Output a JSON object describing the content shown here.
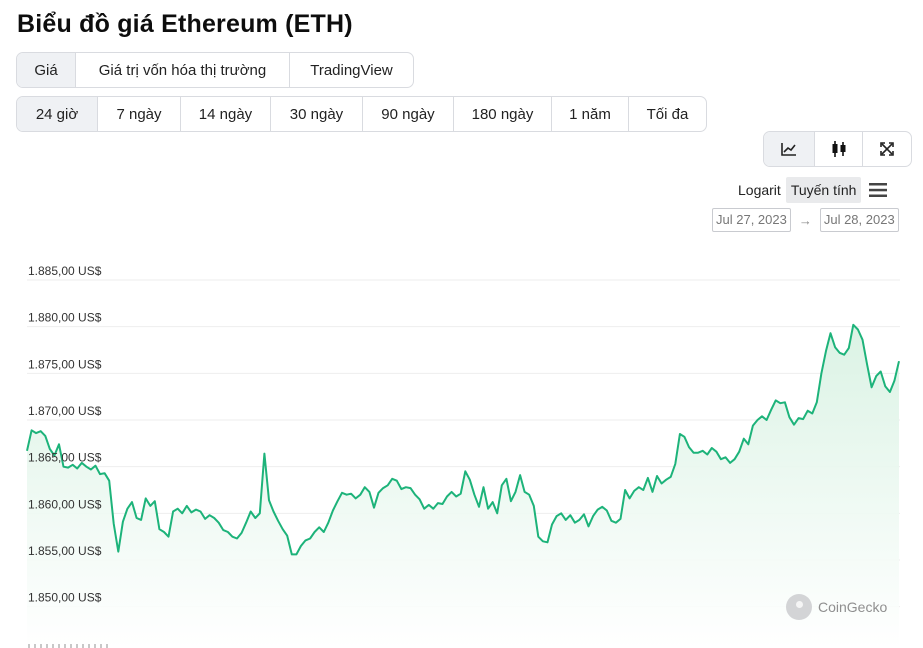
{
  "title": "Biểu đồ giá Ethereum (ETH)",
  "view_tabs": [
    {
      "label": "Giá",
      "active": true
    },
    {
      "label": "Giá trị vốn hóa thị trường",
      "active": false
    },
    {
      "label": "TradingView",
      "active": false
    }
  ],
  "range_tabs": [
    {
      "label": "24 giờ",
      "active": true
    },
    {
      "label": "7 ngày",
      "active": false
    },
    {
      "label": "14 ngày",
      "active": false
    },
    {
      "label": "30 ngày",
      "active": false
    },
    {
      "label": "90 ngày",
      "active": false
    },
    {
      "label": "180 ngày",
      "active": false
    },
    {
      "label": "1 năm",
      "active": false
    },
    {
      "label": "Tối đa",
      "active": false
    }
  ],
  "chart_type_buttons": [
    {
      "icon": "line-chart-icon",
      "active": true
    },
    {
      "icon": "candlestick-icon",
      "active": false
    },
    {
      "icon": "expand-icon",
      "active": false
    }
  ],
  "scale": {
    "logarit": "Logarit",
    "linear": "Tuyến tính",
    "active": "linear"
  },
  "date_range": {
    "from": "Jul 27, 2023",
    "arrow": "→",
    "to": "Jul 28, 2023"
  },
  "watermark": "CoinGecko",
  "colors": {
    "line": "#1db37a",
    "fill_top": "#d9f2e3",
    "grid": "#eeeeee",
    "active_bg": "#eff1f4"
  },
  "chart_data": {
    "type": "area",
    "title": "",
    "xlabel": "",
    "ylabel": "",
    "ylim": [
      1847.5,
      1886.5
    ],
    "y_ticks": [
      1850,
      1855,
      1860,
      1865,
      1870,
      1875,
      1880,
      1885
    ],
    "y_tick_labels": [
      "1.850,00 US$",
      "1.855,00 US$",
      "1.860,00 US$",
      "1.865,00 US$",
      "1.870,00 US$",
      "1.875,00 US$",
      "1.880,00 US$",
      "1.885,00 US$"
    ],
    "grid": true,
    "series": [
      {
        "values": [
          1866.7,
          1868.9,
          1868.6,
          1868.8,
          1868.3,
          1866.9,
          1866.2,
          1867.4,
          1865.0,
          1864.9,
          1865.2,
          1864.8,
          1865.4,
          1865.0,
          1864.7,
          1865.1,
          1864.2,
          1864.3,
          1863.5,
          1858.9,
          1855.9,
          1859.1,
          1860.5,
          1861.2,
          1859.5,
          1859.3,
          1861.6,
          1860.8,
          1861.3,
          1858.3,
          1858.0,
          1857.5,
          1860.2,
          1860.5,
          1860.0,
          1860.8,
          1860.1,
          1860.4,
          1860.2,
          1859.4,
          1859.8,
          1859.5,
          1859.0,
          1858.2,
          1858.0,
          1857.5,
          1857.3,
          1857.9,
          1859.0,
          1860.2,
          1859.5,
          1860.0,
          1866.4,
          1861.4,
          1860.2,
          1859.2,
          1858.3,
          1857.6,
          1855.6,
          1855.6,
          1856.5,
          1857.1,
          1857.3,
          1858.0,
          1858.5,
          1858.0,
          1859.0,
          1860.3,
          1861.3,
          1862.2,
          1862.0,
          1862.1,
          1861.6,
          1862.0,
          1862.8,
          1862.3,
          1860.6,
          1862.2,
          1862.7,
          1863.0,
          1863.7,
          1863.5,
          1862.6,
          1862.8,
          1862.7,
          1862.0,
          1861.5,
          1860.5,
          1860.9,
          1860.5,
          1861.1,
          1861.0,
          1861.8,
          1862.3,
          1861.8,
          1862.1,
          1864.5,
          1863.6,
          1862.0,
          1860.7,
          1862.8,
          1860.5,
          1861.2,
          1860.0,
          1863.0,
          1863.7,
          1861.3,
          1862.3,
          1864.1,
          1862.3,
          1862.0,
          1860.8,
          1857.5,
          1857.0,
          1856.9,
          1858.8,
          1859.7,
          1860.0,
          1859.3,
          1859.8,
          1859.0,
          1859.3,
          1859.9,
          1858.6,
          1859.7,
          1860.4,
          1860.7,
          1860.3,
          1859.2,
          1859.0,
          1859.4,
          1862.5,
          1861.6,
          1862.4,
          1862.8,
          1862.5,
          1863.8,
          1862.3,
          1864.0,
          1863.2,
          1863.6,
          1863.9,
          1865.3,
          1868.5,
          1868.2,
          1867.1,
          1866.5,
          1866.5,
          1866.7,
          1866.3,
          1867.0,
          1866.6,
          1865.8,
          1866.0,
          1865.4,
          1865.8,
          1866.6,
          1868.0,
          1867.4,
          1869.4,
          1870.0,
          1870.4,
          1870.0,
          1871.1,
          1872.1,
          1871.8,
          1871.9,
          1870.3,
          1869.5,
          1870.2,
          1870.1,
          1871.0,
          1870.7,
          1871.9,
          1875.0,
          1877.4,
          1879.3,
          1877.8,
          1877.2,
          1877.0,
          1877.7,
          1880.2,
          1879.7,
          1878.6,
          1876.0,
          1873.5,
          1874.7,
          1875.2,
          1873.6,
          1873.0,
          1874.2,
          1876.3
        ]
      }
    ]
  }
}
